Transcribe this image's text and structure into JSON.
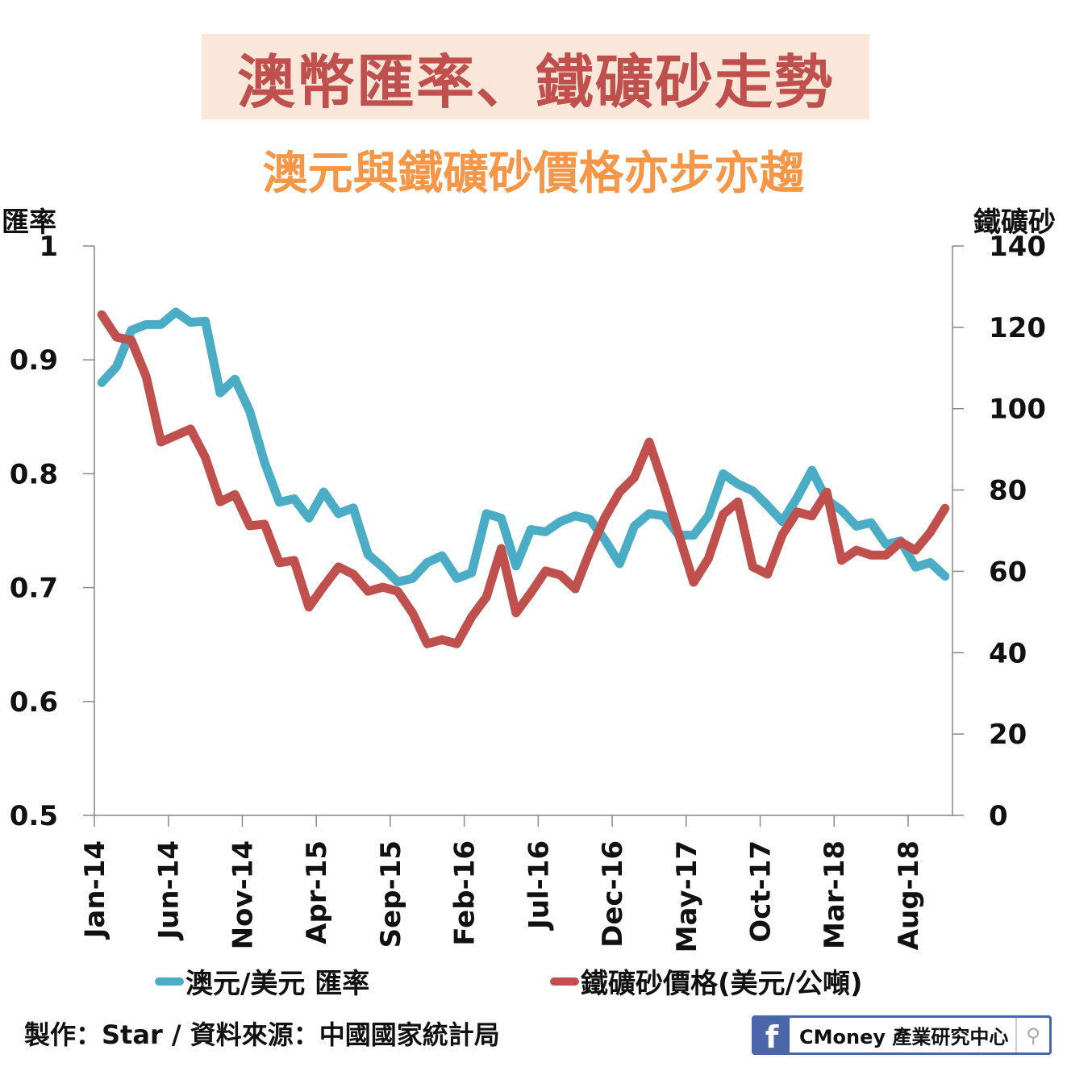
{
  "header": {
    "title": "澳幣匯率、鐵礦砂走勢",
    "subtitle": "澳元與鐵礦砂價格亦步亦趨"
  },
  "footer": {
    "credit": "製作：Star / 資料來源：中國國家統計局"
  },
  "logo": {
    "facebook_glyph": "f",
    "name": "CMoney 產業研究中心",
    "icon": "search-icon"
  },
  "chart_data": {
    "type": "line",
    "title": "澳幣匯率、鐵礦砂走勢",
    "subtitle": "澳元與鐵礦砂價格亦步亦趨",
    "y_left_label": "匯率",
    "y_right_label": "鐵礦砂",
    "y_left_lim": [
      0.5,
      1
    ],
    "y_left_ticks": [
      "0.5",
      "0.6",
      "0.7",
      "0.8",
      "0.9",
      "1"
    ],
    "y_right_lim": [
      0,
      140
    ],
    "y_right_ticks": [
      "0",
      "20",
      "40",
      "60",
      "80",
      "100",
      "120",
      "140"
    ],
    "x_tick_labels": [
      "Jan-14",
      "Jun-14",
      "Nov-14",
      "Apr-15",
      "Sep-15",
      "Feb-16",
      "Jul-16",
      "Dec-16",
      "May-17",
      "Oct-17",
      "Mar-18",
      "Aug-18"
    ],
    "x_tick_every": 5,
    "grid": false,
    "legend_position": "bottom",
    "series": [
      {
        "name": "澳元/美元 匯率",
        "axis": "left",
        "color": "#4bacc6",
        "values": [
          0.88,
          0.894,
          0.926,
          0.931,
          0.931,
          0.942,
          0.933,
          0.934,
          0.871,
          0.883,
          0.855,
          0.81,
          0.775,
          0.778,
          0.761,
          0.784,
          0.765,
          0.77,
          0.729,
          0.718,
          0.705,
          0.708,
          0.722,
          0.728,
          0.708,
          0.713,
          0.765,
          0.761,
          0.719,
          0.751,
          0.749,
          0.758,
          0.763,
          0.76,
          0.742,
          0.721,
          0.754,
          0.765,
          0.763,
          0.746,
          0.746,
          0.763,
          0.8,
          0.791,
          0.785,
          0.772,
          0.758,
          0.779,
          0.803,
          0.777,
          0.768,
          0.754,
          0.757,
          0.738,
          0.741,
          0.718,
          0.722,
          0.71
        ]
      },
      {
        "name": "鐵礦砂價格(美元/公噸)",
        "axis": "right",
        "color": "#c0504d",
        "values": [
          123.1,
          117.6,
          116.8,
          107.9,
          91.8,
          93.4,
          95.0,
          88.0,
          77.1,
          78.9,
          71.2,
          71.6,
          62.1,
          62.7,
          51.2,
          56.3,
          61.1,
          59.3,
          55.1,
          56.1,
          55.1,
          49.8,
          42.2,
          43.2,
          42.2,
          48.8,
          53.7,
          65.6,
          49.8,
          54.7,
          60.1,
          59.1,
          55.7,
          65.0,
          73.2,
          79.5,
          83.1,
          91.8,
          80.9,
          69.0,
          57.3,
          63.1,
          74.0,
          77.1,
          61.1,
          59.3,
          69.0,
          74.6,
          73.6,
          79.5,
          62.7,
          65.2,
          64.0,
          64.0,
          67.2,
          65.2,
          69.6,
          75.5
        ]
      }
    ]
  }
}
